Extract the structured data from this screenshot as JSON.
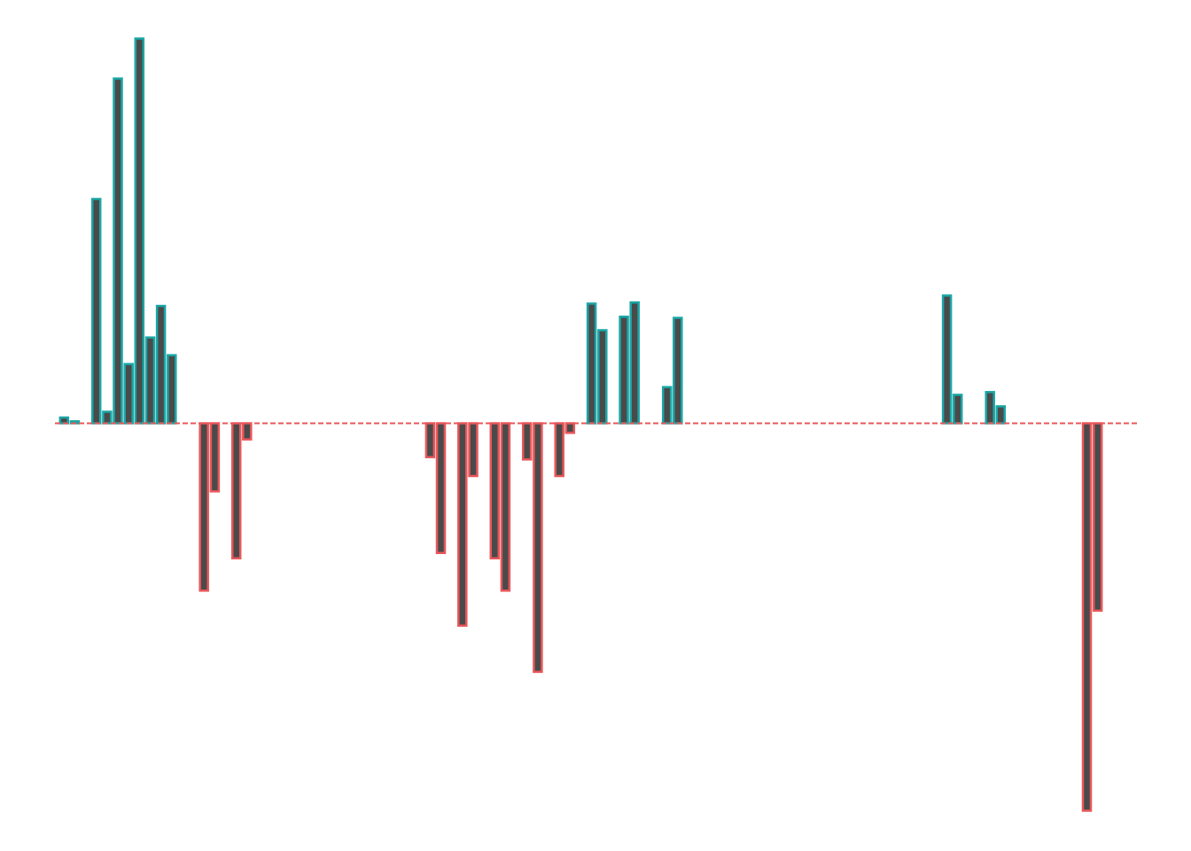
{
  "chart_data": {
    "type": "bar",
    "title": "",
    "xlabel": "",
    "ylabel": "",
    "grid": false,
    "axes_visible": false,
    "colors": {
      "bar_fill": "#4a4a4a",
      "positive_edge": "#1aa6a6",
      "negative_edge": "#e8575a",
      "baseline": "#e8575a"
    },
    "ylim": [
      -100,
      100
    ],
    "values": [
      1.5,
      0.5,
      0,
      58.3,
      3,
      89.6,
      15.4,
      100,
      22.3,
      30.5,
      17.7,
      0,
      0,
      -43.5,
      -17.7,
      0,
      -35.1,
      -4.2,
      0,
      0,
      0,
      0,
      0,
      0,
      0,
      0,
      0,
      0,
      0,
      0,
      0,
      0,
      0,
      0,
      -8.8,
      -33.7,
      0,
      -52.6,
      -13.7,
      0,
      -35.1,
      -43.5,
      0,
      -9.4,
      -64.6,
      0,
      -13.7,
      -2.5,
      0,
      31.1,
      24.2,
      0,
      27.7,
      31.4,
      0,
      0,
      9.4,
      27.4,
      0,
      0,
      0,
      0,
      0,
      0,
      0,
      0,
      0,
      0,
      0,
      0,
      0,
      0,
      0,
      0,
      0,
      0,
      0,
      0,
      0,
      0,
      0,
      0,
      33.2,
      7.4,
      0,
      0,
      8.1,
      4.4,
      0,
      0,
      0,
      0,
      0,
      0,
      0,
      -100.7,
      -48.7
    ]
  }
}
